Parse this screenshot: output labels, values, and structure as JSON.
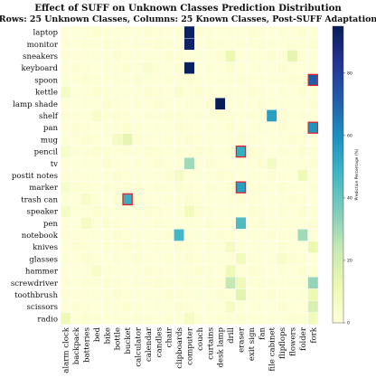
{
  "chart_data": {
    "type": "heatmap",
    "title": "Effect of SUFF on Unknown Classes Prediction Distribution",
    "subtitle": "(Rows: 25 Unknown Classes, Columns: 25 Known Classes, Post-SUFF Adaptation)",
    "rows": [
      "laptop",
      "monitor",
      "sneakers",
      "keyboard",
      "spoon",
      "kettle",
      "lamp shade",
      "shelf",
      "pan",
      "mug",
      "pencil",
      "tv",
      "postit notes",
      "marker",
      "trash can",
      "speaker",
      "pen",
      "notebook",
      "knives",
      "glasses",
      "hammer",
      "screwdriver",
      "toothbrush",
      "scissors",
      "radio"
    ],
    "columns": [
      "alarm clock",
      "backpack",
      "batteries",
      "bed",
      "bike",
      "bottle",
      "bucket",
      "calculator",
      "calendar",
      "candles",
      "chair",
      "clipboards",
      "computer",
      "couch",
      "curtains",
      "desk lamp",
      "drill",
      "eraser",
      "exit sign",
      "fan",
      "file cabinet",
      "flipflops",
      "flowers",
      "folder",
      "fork"
    ],
    "colorbar_label": "Prediction Percentage (%)",
    "colorbar_ticks": [
      0,
      20,
      40,
      60,
      80
    ],
    "vmin": 0,
    "vmax": 95,
    "highlights": [
      {
        "row": "spoon",
        "column": "fork"
      },
      {
        "row": "pan",
        "column": "fork"
      },
      {
        "row": "pencil",
        "column": "eraser"
      },
      {
        "row": "marker",
        "column": "eraser"
      },
      {
        "row": "trash can",
        "column": "bucket"
      }
    ],
    "cells": [
      {
        "row": "laptop",
        "column": "computer",
        "value": 93
      },
      {
        "row": "monitor",
        "column": "computer",
        "value": 92
      },
      {
        "row": "sneakers",
        "column": "drill",
        "value": 12
      },
      {
        "row": "sneakers",
        "column": "flowers",
        "value": 14
      },
      {
        "row": "keyboard",
        "column": "computer",
        "value": 94
      },
      {
        "row": "keyboard",
        "column": "calendar",
        "value": 4
      },
      {
        "row": "spoon",
        "column": "fork",
        "value": 72
      },
      {
        "row": "kettle",
        "column": "alarm clock",
        "value": 6
      },
      {
        "row": "kettle",
        "column": "clipboards",
        "value": 4
      },
      {
        "row": "lamp shade",
        "column": "desk lamp",
        "value": 95
      },
      {
        "row": "shelf",
        "column": "file cabinet",
        "value": 55
      },
      {
        "row": "shelf",
        "column": "bed",
        "value": 5
      },
      {
        "row": "pan",
        "column": "fork",
        "value": 58
      },
      {
        "row": "mug",
        "column": "bucket",
        "value": 14
      },
      {
        "row": "mug",
        "column": "bottle",
        "value": 6
      },
      {
        "row": "pencil",
        "column": "eraser",
        "value": 50
      },
      {
        "row": "pencil",
        "column": "alarm clock",
        "value": 5
      },
      {
        "row": "tv",
        "column": "computer",
        "value": 30
      },
      {
        "row": "tv",
        "column": "file cabinet",
        "value": 7
      },
      {
        "row": "postit notes",
        "column": "folder",
        "value": 10
      },
      {
        "row": "postit notes",
        "column": "clipboards",
        "value": 6
      },
      {
        "row": "marker",
        "column": "eraser",
        "value": 55
      },
      {
        "row": "marker",
        "column": "alarm clock",
        "value": 5
      },
      {
        "row": "trash can",
        "column": "bucket",
        "value": 50
      },
      {
        "row": "trash can",
        "column": "batteries",
        "value": 5
      },
      {
        "row": "speaker",
        "column": "alarm clock",
        "value": 6
      },
      {
        "row": "speaker",
        "column": "computer",
        "value": 8
      },
      {
        "row": "pen",
        "column": "eraser",
        "value": 45
      },
      {
        "row": "pen",
        "column": "batteries",
        "value": 6
      },
      {
        "row": "notebook",
        "column": "clipboards",
        "value": 47
      },
      {
        "row": "notebook",
        "column": "folder",
        "value": 30
      },
      {
        "row": "knives",
        "column": "fork",
        "value": 12
      },
      {
        "row": "knives",
        "column": "drill",
        "value": 6
      },
      {
        "row": "glasses",
        "column": "eraser",
        "value": 8
      },
      {
        "row": "glasses",
        "column": "flipflops",
        "value": 5
      },
      {
        "row": "hammer",
        "column": "drill",
        "value": 10
      },
      {
        "row": "hammer",
        "column": "bed",
        "value": 5
      },
      {
        "row": "screwdriver",
        "column": "drill",
        "value": 24
      },
      {
        "row": "screwdriver",
        "column": "fork",
        "value": 32
      },
      {
        "row": "screwdriver",
        "column": "eraser",
        "value": 10
      },
      {
        "row": "toothbrush",
        "column": "eraser",
        "value": 15
      },
      {
        "row": "toothbrush",
        "column": "fork",
        "value": 12
      },
      {
        "row": "scissors",
        "column": "fork",
        "value": 18
      },
      {
        "row": "scissors",
        "column": "drill",
        "value": 6
      },
      {
        "row": "radio",
        "column": "alarm clock",
        "value": 10
      },
      {
        "row": "radio",
        "column": "fork",
        "value": 8
      },
      {
        "row": "radio",
        "column": "computer",
        "value": 6
      }
    ]
  }
}
